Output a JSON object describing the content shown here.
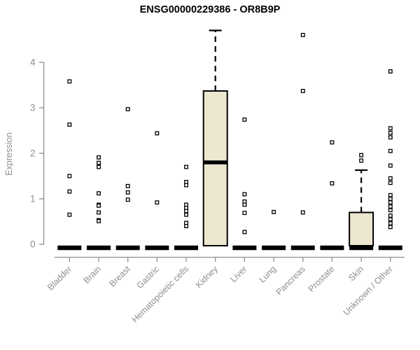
{
  "chart_data": {
    "type": "boxplot",
    "title": "ENSG00000229386 - OR8B9P",
    "ylabel": "Expression",
    "xlabel": "",
    "ylim": [
      0,
      4.7
    ],
    "yticks": [
      0,
      1,
      2,
      3,
      4
    ],
    "grid": false,
    "legend": "none",
    "axis_color": "#8e8e8e",
    "box_fill": "#ede7cf",
    "box_stroke": "#000000",
    "point_color": "#000000",
    "categories": [
      "Bladder",
      "Brain",
      "Breast",
      "Gastric",
      "Hematopoietic cells",
      "Kidney",
      "Liver",
      "Lung",
      "Pancreas",
      "Prostate",
      "Skin",
      "Unknown / Other"
    ],
    "boxes": [
      {
        "category": "Bladder",
        "q1": 0,
        "median": 0,
        "q3": 0,
        "whisker_low": 0,
        "whisker_high": 0,
        "outliers": [
          3.58,
          2.63,
          1.5,
          1.16,
          0.65
        ]
      },
      {
        "category": "Brain",
        "q1": 0,
        "median": 0,
        "q3": 0,
        "whisker_low": 0,
        "whisker_high": 0,
        "outliers": [
          1.91,
          1.79,
          1.7,
          1.12,
          0.87,
          0.85,
          0.7,
          0.53,
          0.51
        ]
      },
      {
        "category": "Breast",
        "q1": 0,
        "median": 0,
        "q3": 0,
        "whisker_low": 0,
        "whisker_high": 0,
        "outliers": [
          2.97,
          1.28,
          1.14,
          0.98
        ]
      },
      {
        "category": "Gastric",
        "q1": 0,
        "median": 0,
        "q3": 0,
        "whisker_low": 0,
        "whisker_high": 0,
        "outliers": [
          2.44,
          0.92
        ]
      },
      {
        "category": "Hematopoietic cells",
        "q1": 0,
        "median": 0,
        "q3": 0,
        "whisker_low": 0,
        "whisker_high": 0,
        "outliers": [
          1.7,
          1.37,
          1.3,
          0.87,
          0.8,
          0.73,
          0.65,
          0.47,
          0.4
        ]
      },
      {
        "category": "Kidney",
        "q1": 0,
        "median": 1.8,
        "q3": 3.37,
        "whisker_low": 0,
        "whisker_high": 4.7,
        "outliers": []
      },
      {
        "category": "Liver",
        "q1": 0,
        "median": 0,
        "q3": 0,
        "whisker_low": 0,
        "whisker_high": 0,
        "outliers": [
          2.74,
          1.1,
          0.94,
          0.87,
          0.69,
          0.27
        ]
      },
      {
        "category": "Lung",
        "q1": 0,
        "median": 0,
        "q3": 0,
        "whisker_low": 0,
        "whisker_high": 0,
        "outliers": [
          0.71
        ]
      },
      {
        "category": "Pancreas",
        "q1": 0,
        "median": 0,
        "q3": 0,
        "whisker_low": 0,
        "whisker_high": 0,
        "outliers": [
          4.6,
          3.37,
          0.7
        ]
      },
      {
        "category": "Prostate",
        "q1": 0,
        "median": 0,
        "q3": 0,
        "whisker_low": 0,
        "whisker_high": 0,
        "outliers": [
          2.24,
          1.34
        ]
      },
      {
        "category": "Skin",
        "q1": 0,
        "median": 0,
        "q3": 0.7,
        "whisker_low": 0,
        "whisker_high": 1.63,
        "outliers": [
          1.96,
          1.84
        ]
      },
      {
        "category": "Unknown / Other",
        "q1": 0,
        "median": 0,
        "q3": 0,
        "whisker_low": 0,
        "whisker_high": 0,
        "outliers": [
          3.8,
          2.55,
          2.45,
          2.35,
          2.05,
          1.73,
          1.45,
          1.35,
          1.08,
          1.0,
          0.92,
          0.83,
          0.75,
          0.63,
          0.55,
          0.46,
          0.38
        ]
      }
    ]
  }
}
